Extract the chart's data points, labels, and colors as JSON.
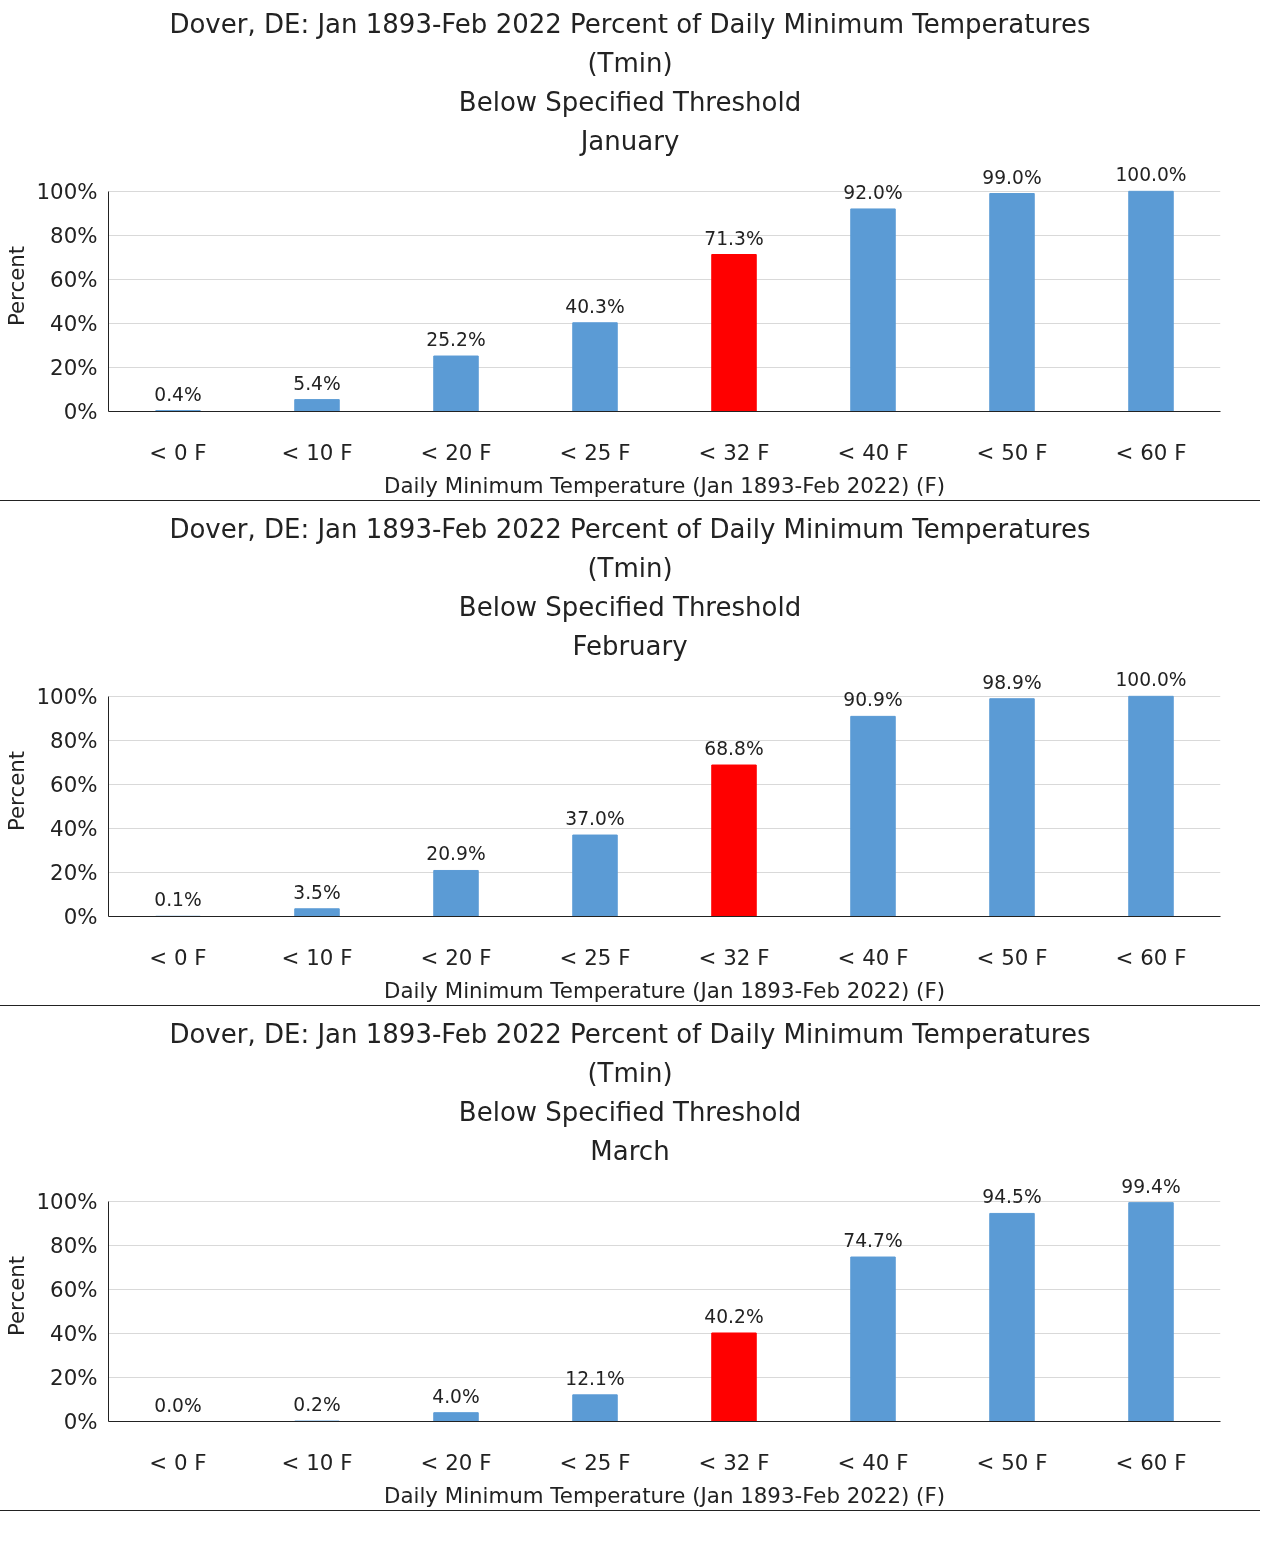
{
  "chart_data": [
    {
      "type": "bar",
      "title": "Dover, DE: Jan 1893-Feb 2022 Percent of Daily Minimum Temperatures\n(Tmin)\nBelow Specified Threshold\nJanuary",
      "xlabel": "Daily Minimum Temperature (Jan 1893-Feb 2022) (F)",
      "ylabel": "Percent",
      "categories": [
        "< 0 F",
        "< 10 F",
        "< 20 F",
        "< 25 F",
        "< 32 F",
        "< 40 F",
        "< 50 F",
        "< 60 F"
      ],
      "values": [
        0.4,
        5.4,
        25.2,
        40.3,
        71.3,
        92.0,
        99.0,
        100.0
      ],
      "colors": [
        "#5b9bd5",
        "#5b9bd5",
        "#5b9bd5",
        "#5b9bd5",
        "#ff0000",
        "#5b9bd5",
        "#5b9bd5",
        "#5b9bd5"
      ],
      "value_labels": [
        "0.4%",
        "5.4%",
        "25.2%",
        "40.3%",
        "71.3%",
        "92.0%",
        "99.0%",
        "100.0%"
      ],
      "ylim": [
        0,
        100
      ],
      "yticks": [
        {
          "value": 0,
          "label": "0%"
        },
        {
          "value": 20,
          "label": "20%"
        },
        {
          "value": 40,
          "label": "40%"
        },
        {
          "value": 60,
          "label": "60%"
        },
        {
          "value": 80,
          "label": "80%"
        },
        {
          "value": 100,
          "label": "100%"
        }
      ],
      "grid": "y"
    },
    {
      "type": "bar",
      "title": "Dover, DE: Jan 1893-Feb 2022 Percent of Daily Minimum Temperatures\n(Tmin)\nBelow Specified Threshold\nFebruary",
      "xlabel": "Daily Minimum Temperature (Jan 1893-Feb 2022) (F)",
      "ylabel": "Percent",
      "categories": [
        "< 0 F",
        "< 10 F",
        "< 20 F",
        "< 25 F",
        "< 32 F",
        "< 40 F",
        "< 50 F",
        "< 60 F"
      ],
      "values": [
        0.1,
        3.5,
        20.9,
        37.0,
        68.8,
        90.9,
        98.9,
        100.0
      ],
      "colors": [
        "#5b9bd5",
        "#5b9bd5",
        "#5b9bd5",
        "#5b9bd5",
        "#ff0000",
        "#5b9bd5",
        "#5b9bd5",
        "#5b9bd5"
      ],
      "value_labels": [
        "0.1%",
        "3.5%",
        "20.9%",
        "37.0%",
        "68.8%",
        "90.9%",
        "98.9%",
        "100.0%"
      ],
      "ylim": [
        0,
        100
      ],
      "yticks": [
        {
          "value": 0,
          "label": "0%"
        },
        {
          "value": 20,
          "label": "20%"
        },
        {
          "value": 40,
          "label": "40%"
        },
        {
          "value": 60,
          "label": "60%"
        },
        {
          "value": 80,
          "label": "80%"
        },
        {
          "value": 100,
          "label": "100%"
        }
      ],
      "grid": "y"
    },
    {
      "type": "bar",
      "title": "Dover, DE: Jan 1893-Feb 2022 Percent of Daily Minimum Temperatures\n(Tmin)\nBelow Specified Threshold\nMarch",
      "xlabel": "Daily Minimum Temperature (Jan 1893-Feb 2022) (F)",
      "ylabel": "Percent",
      "categories": [
        "< 0 F",
        "< 10 F",
        "< 20 F",
        "< 25 F",
        "< 32 F",
        "< 40 F",
        "< 50 F",
        "< 60 F"
      ],
      "values": [
        0.0,
        0.2,
        4.0,
        12.1,
        40.2,
        74.7,
        94.5,
        99.4
      ],
      "colors": [
        "#5b9bd5",
        "#5b9bd5",
        "#5b9bd5",
        "#5b9bd5",
        "#ff0000",
        "#5b9bd5",
        "#5b9bd5",
        "#5b9bd5"
      ],
      "value_labels": [
        "0.0%",
        "0.2%",
        "4.0%",
        "12.1%",
        "40.2%",
        "74.7%",
        "94.5%",
        "99.4%"
      ],
      "ylim": [
        0,
        100
      ],
      "yticks": [
        {
          "value": 0,
          "label": "0%"
        },
        {
          "value": 20,
          "label": "20%"
        },
        {
          "value": 40,
          "label": "40%"
        },
        {
          "value": 60,
          "label": "60%"
        },
        {
          "value": 80,
          "label": "80%"
        },
        {
          "value": 100,
          "label": "100%"
        }
      ],
      "grid": "y"
    }
  ]
}
